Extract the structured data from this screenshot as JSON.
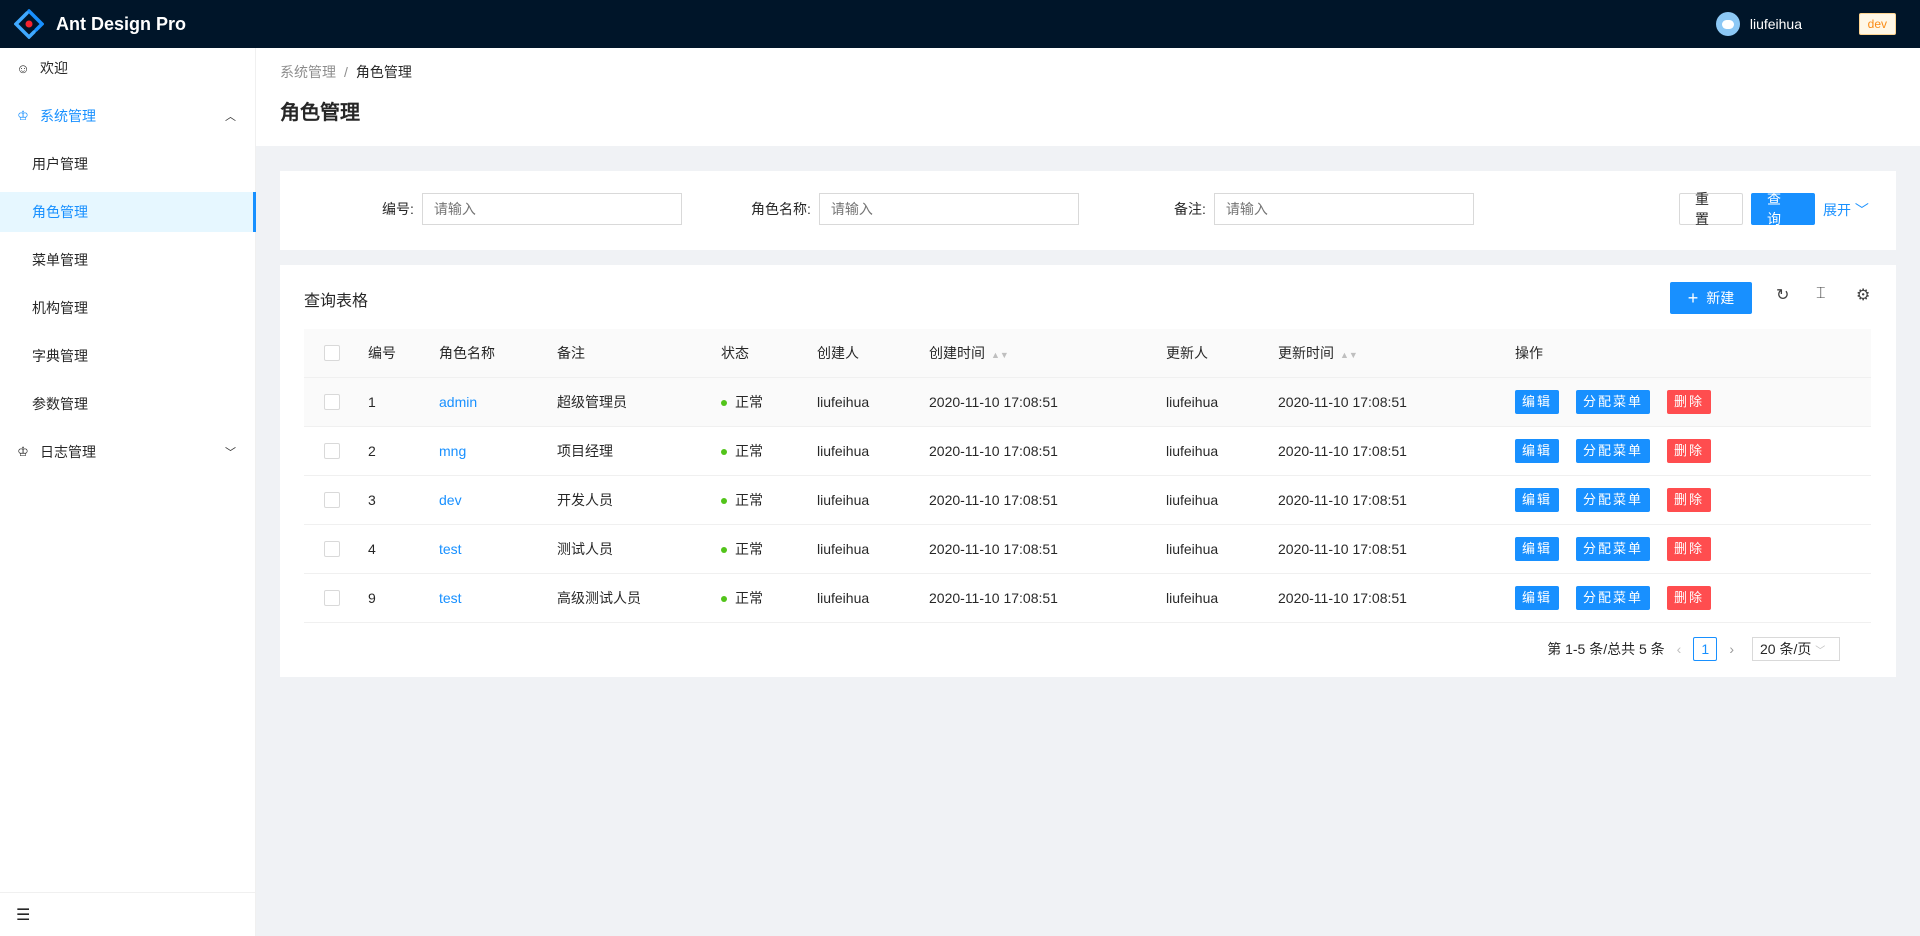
{
  "header": {
    "brand": "Ant Design Pro",
    "username": "liufeihua",
    "env_tag": "dev"
  },
  "sidebar": {
    "items": [
      {
        "label": "欢迎",
        "icon": "smile-icon"
      },
      {
        "label": "系统管理",
        "icon": "crown-icon",
        "expanded": true
      },
      {
        "label": "用户管理"
      },
      {
        "label": "角色管理",
        "selected": true
      },
      {
        "label": "菜单管理"
      },
      {
        "label": "机构管理"
      },
      {
        "label": "字典管理"
      },
      {
        "label": "参数管理"
      },
      {
        "label": "日志管理",
        "icon": "crown-icon",
        "expanded": false
      }
    ]
  },
  "breadcrumb": [
    "系统管理",
    "角色管理"
  ],
  "page_title": "角色管理",
  "search": {
    "fields": [
      {
        "label": "编号:",
        "placeholder": "请输入"
      },
      {
        "label": "角色名称:",
        "placeholder": "请输入"
      },
      {
        "label": "备注:",
        "placeholder": "请输入"
      }
    ],
    "reset": "重置",
    "query": "查询",
    "expand": "展开"
  },
  "table": {
    "title": "查询表格",
    "new_label": "新建",
    "columns": [
      "编号",
      "角色名称",
      "备注",
      "状态",
      "创建人",
      "创建时间",
      "更新人",
      "更新时间",
      "操作"
    ],
    "rows": [
      {
        "id": "1",
        "name": "admin",
        "remark": "超级管理员",
        "status": "正常",
        "creator": "liufeihua",
        "created": "2020-11-10 17:08:51",
        "updater": "liufeihua",
        "updated": "2020-11-10 17:08:51"
      },
      {
        "id": "2",
        "name": "mng",
        "remark": "项目经理",
        "status": "正常",
        "creator": "liufeihua",
        "created": "2020-11-10 17:08:51",
        "updater": "liufeihua",
        "updated": "2020-11-10 17:08:51"
      },
      {
        "id": "3",
        "name": "dev",
        "remark": "开发人员",
        "status": "正常",
        "creator": "liufeihua",
        "created": "2020-11-10 17:08:51",
        "updater": "liufeihua",
        "updated": "2020-11-10 17:08:51"
      },
      {
        "id": "4",
        "name": "test",
        "remark": "测试人员",
        "status": "正常",
        "creator": "liufeihua",
        "created": "2020-11-10 17:08:51",
        "updater": "liufeihua",
        "updated": "2020-11-10 17:08:51"
      },
      {
        "id": "9",
        "name": "test",
        "remark": "高级测试人员",
        "status": "正常",
        "creator": "liufeihua",
        "created": "2020-11-10 17:08:51",
        "updater": "liufeihua",
        "updated": "2020-11-10 17:08:51"
      }
    ],
    "actions": {
      "edit": "编辑",
      "assign": "分配菜单",
      "delete": "删除"
    }
  },
  "pagination": {
    "summary": "第 1-5 条/总共 5 条",
    "current": "1",
    "page_size": "20 条/页"
  },
  "colors": {
    "primary": "#1890ff",
    "danger": "#ff4d4f",
    "header_bg": "#001529",
    "status_ok": "#52c41a"
  }
}
